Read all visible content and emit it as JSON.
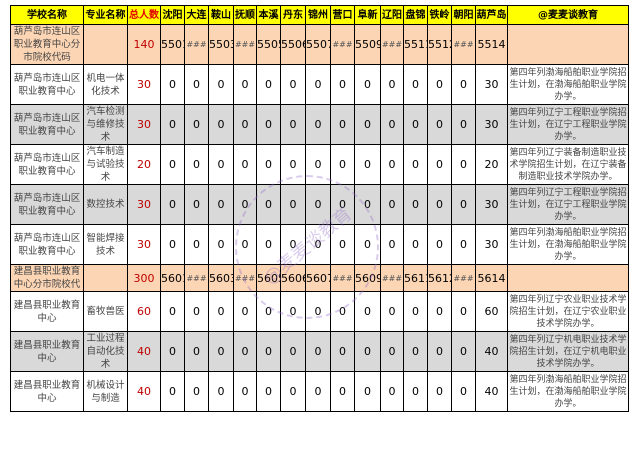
{
  "headers": [
    "学校名称",
    "专业名称",
    "总人数",
    "沈阳",
    "大连",
    "鞍山",
    "抚顺",
    "本溪",
    "丹东",
    "锦州",
    "营口",
    "阜新",
    "辽阳",
    "盘锦",
    "铁岭",
    "朝阳",
    "葫芦岛",
    "@麦麦谈教育"
  ],
  "rows": [
    {
      "type": "code",
      "school": "葫芦岛市连山区职业教育中心分市院校代码",
      "major": "",
      "total": "140",
      "cities": [
        "5501",
        "###",
        "5503",
        "###",
        "5505",
        "5506",
        "5507",
        "###",
        "5509",
        "###",
        "5511",
        "5512",
        "###",
        "5514"
      ],
      "note": ""
    },
    {
      "type": "data",
      "shade": false,
      "school": "葫芦岛市连山区职业教育中心",
      "major": "机电一体化技术",
      "total": "30",
      "cities": [
        "0",
        "0",
        "0",
        "0",
        "0",
        "0",
        "0",
        "0",
        "0",
        "0",
        "0",
        "0",
        "0",
        "30"
      ],
      "note": "第四年列渤海船舶职业学院招生计划，在渤海船舶职业学院办学。"
    },
    {
      "type": "data",
      "shade": true,
      "school": "葫芦岛市连山区职业教育中心",
      "major": "汽车检测与维修技术",
      "total": "30",
      "cities": [
        "0",
        "0",
        "0",
        "0",
        "0",
        "0",
        "0",
        "0",
        "0",
        "0",
        "0",
        "0",
        "0",
        "30"
      ],
      "note": "第四年列辽宁工程职业学院招生计划，在辽宁工程职业学院办学。"
    },
    {
      "type": "data",
      "shade": false,
      "school": "葫芦岛市连山区职业教育中心",
      "major": "汽车制造与试验技术",
      "total": "20",
      "cities": [
        "0",
        "0",
        "0",
        "0",
        "0",
        "0",
        "0",
        "0",
        "0",
        "0",
        "0",
        "0",
        "0",
        "20"
      ],
      "note": "第四年列辽宁装备制造职业技术学院招生计划，在辽宁装备制造职业技术学院办学。"
    },
    {
      "type": "data",
      "shade": true,
      "school": "葫芦岛市连山区职业教育中心",
      "major": "数控技术",
      "total": "30",
      "cities": [
        "0",
        "0",
        "0",
        "0",
        "0",
        "0",
        "0",
        "0",
        "0",
        "0",
        "0",
        "0",
        "0",
        "30"
      ],
      "note": "第四年列辽宁工程职业学院招生计划，在辽宁工程职业学院办学。"
    },
    {
      "type": "data",
      "shade": false,
      "school": "葫芦岛市连山区职业教育中心",
      "major": "智能焊接技术",
      "total": "30",
      "cities": [
        "0",
        "0",
        "0",
        "0",
        "0",
        "0",
        "0",
        "0",
        "0",
        "0",
        "0",
        "0",
        "0",
        "30"
      ],
      "note": "第四年列渤海船舶职业学院招生计划，在渤海船舶职业学院办学。"
    },
    {
      "type": "code",
      "school": "建昌县职业教育中心分市院校代",
      "major": "",
      "total": "300",
      "cities": [
        "5601",
        "###",
        "5603",
        "###",
        "5605",
        "5606",
        "5607",
        "###",
        "5609",
        "###",
        "5611",
        "5612",
        "###",
        "5614"
      ],
      "note": ""
    },
    {
      "type": "data",
      "shade": false,
      "school": "建昌县职业教育中心",
      "major": "畜牧兽医",
      "total": "60",
      "cities": [
        "0",
        "0",
        "0",
        "0",
        "0",
        "0",
        "0",
        "0",
        "0",
        "0",
        "0",
        "0",
        "0",
        "60"
      ],
      "note": "第四年列辽宁农业职业技术学院招生计划，在辽宁农业职业技术学院办学。"
    },
    {
      "type": "data",
      "shade": true,
      "school": "建昌县职业教育中心",
      "major": "工业过程自动化技术",
      "total": "40",
      "cities": [
        "0",
        "0",
        "0",
        "0",
        "0",
        "0",
        "0",
        "0",
        "0",
        "0",
        "0",
        "0",
        "0",
        "40"
      ],
      "note": "第四年列辽宁机电职业技术学院招生计划，在辽宁机电职业技术学院办学。"
    },
    {
      "type": "data",
      "shade": false,
      "school": "建昌县职业教育中心",
      "major": "机械设计与制造",
      "total": "40",
      "cities": [
        "0",
        "0",
        "0",
        "0",
        "0",
        "0",
        "0",
        "0",
        "0",
        "0",
        "0",
        "0",
        "0",
        "40"
      ],
      "note": "第四年列渤海船舶职业学院招生计划，在渤海船舶职业学院办学。"
    }
  ],
  "watermark": "@麦麦谈教育",
  "colors": {
    "header": "#ffff00",
    "code_row": "#fcd5b4",
    "shade_row": "#d9d9d9",
    "total_text": "#c00000"
  }
}
